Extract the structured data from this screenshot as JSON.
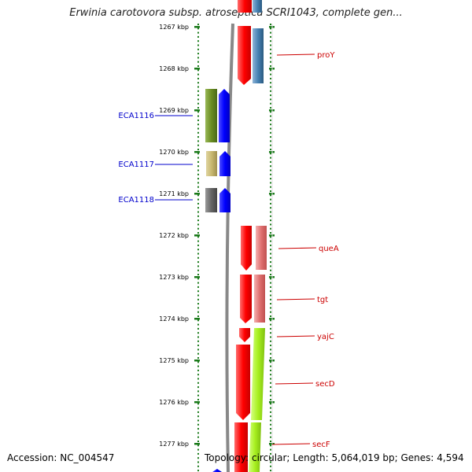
{
  "title": "Erwinia carotovora subsp. atroseptica SCRI1043, complete gen...",
  "accession": "Accession: NC_004547",
  "summary": "Topology: circular; Length: 5,064,019 bp; Genes: 4,594",
  "ruler": {
    "labels": [
      "1267 kbp",
      "1268 kbp",
      "1269 kbp",
      "1270 kbp",
      "1271 kbp",
      "1272 kbp",
      "1273 kbp",
      "1274 kbp",
      "1275 kbp",
      "1276 kbp",
      "1277 kbp"
    ]
  },
  "forward_genes": [
    {
      "label": "proY",
      "color": "#ff1a1a"
    },
    {
      "label": "queA",
      "color": "#ff1a1a"
    },
    {
      "label": "tgt",
      "color": "#ff1a1a"
    },
    {
      "label": "yajC",
      "color": "#ff1a1a"
    },
    {
      "label": "secD",
      "color": "#ff1a1a"
    },
    {
      "label": "secF",
      "color": "#ff1a1a"
    }
  ],
  "reverse_genes": [
    {
      "label": "ECA1116",
      "color": "#0000ff"
    },
    {
      "label": "ECA1117",
      "color": "#0000ff"
    },
    {
      "label": "ECA1118",
      "color": "#0000ff"
    }
  ],
  "colors": {
    "forward_label": "#cc0000",
    "reverse_label": "#0000cc",
    "ruler_ticks": "#1a7a1a",
    "backbone": "#888888",
    "cog_blue": "#4682b4",
    "cog_salmon": "#e88080",
    "cog_lime": "#a8f020",
    "cog_olive": "#6b8e23",
    "cog_khaki": "#c8b870",
    "cog_grey": "#666666"
  }
}
